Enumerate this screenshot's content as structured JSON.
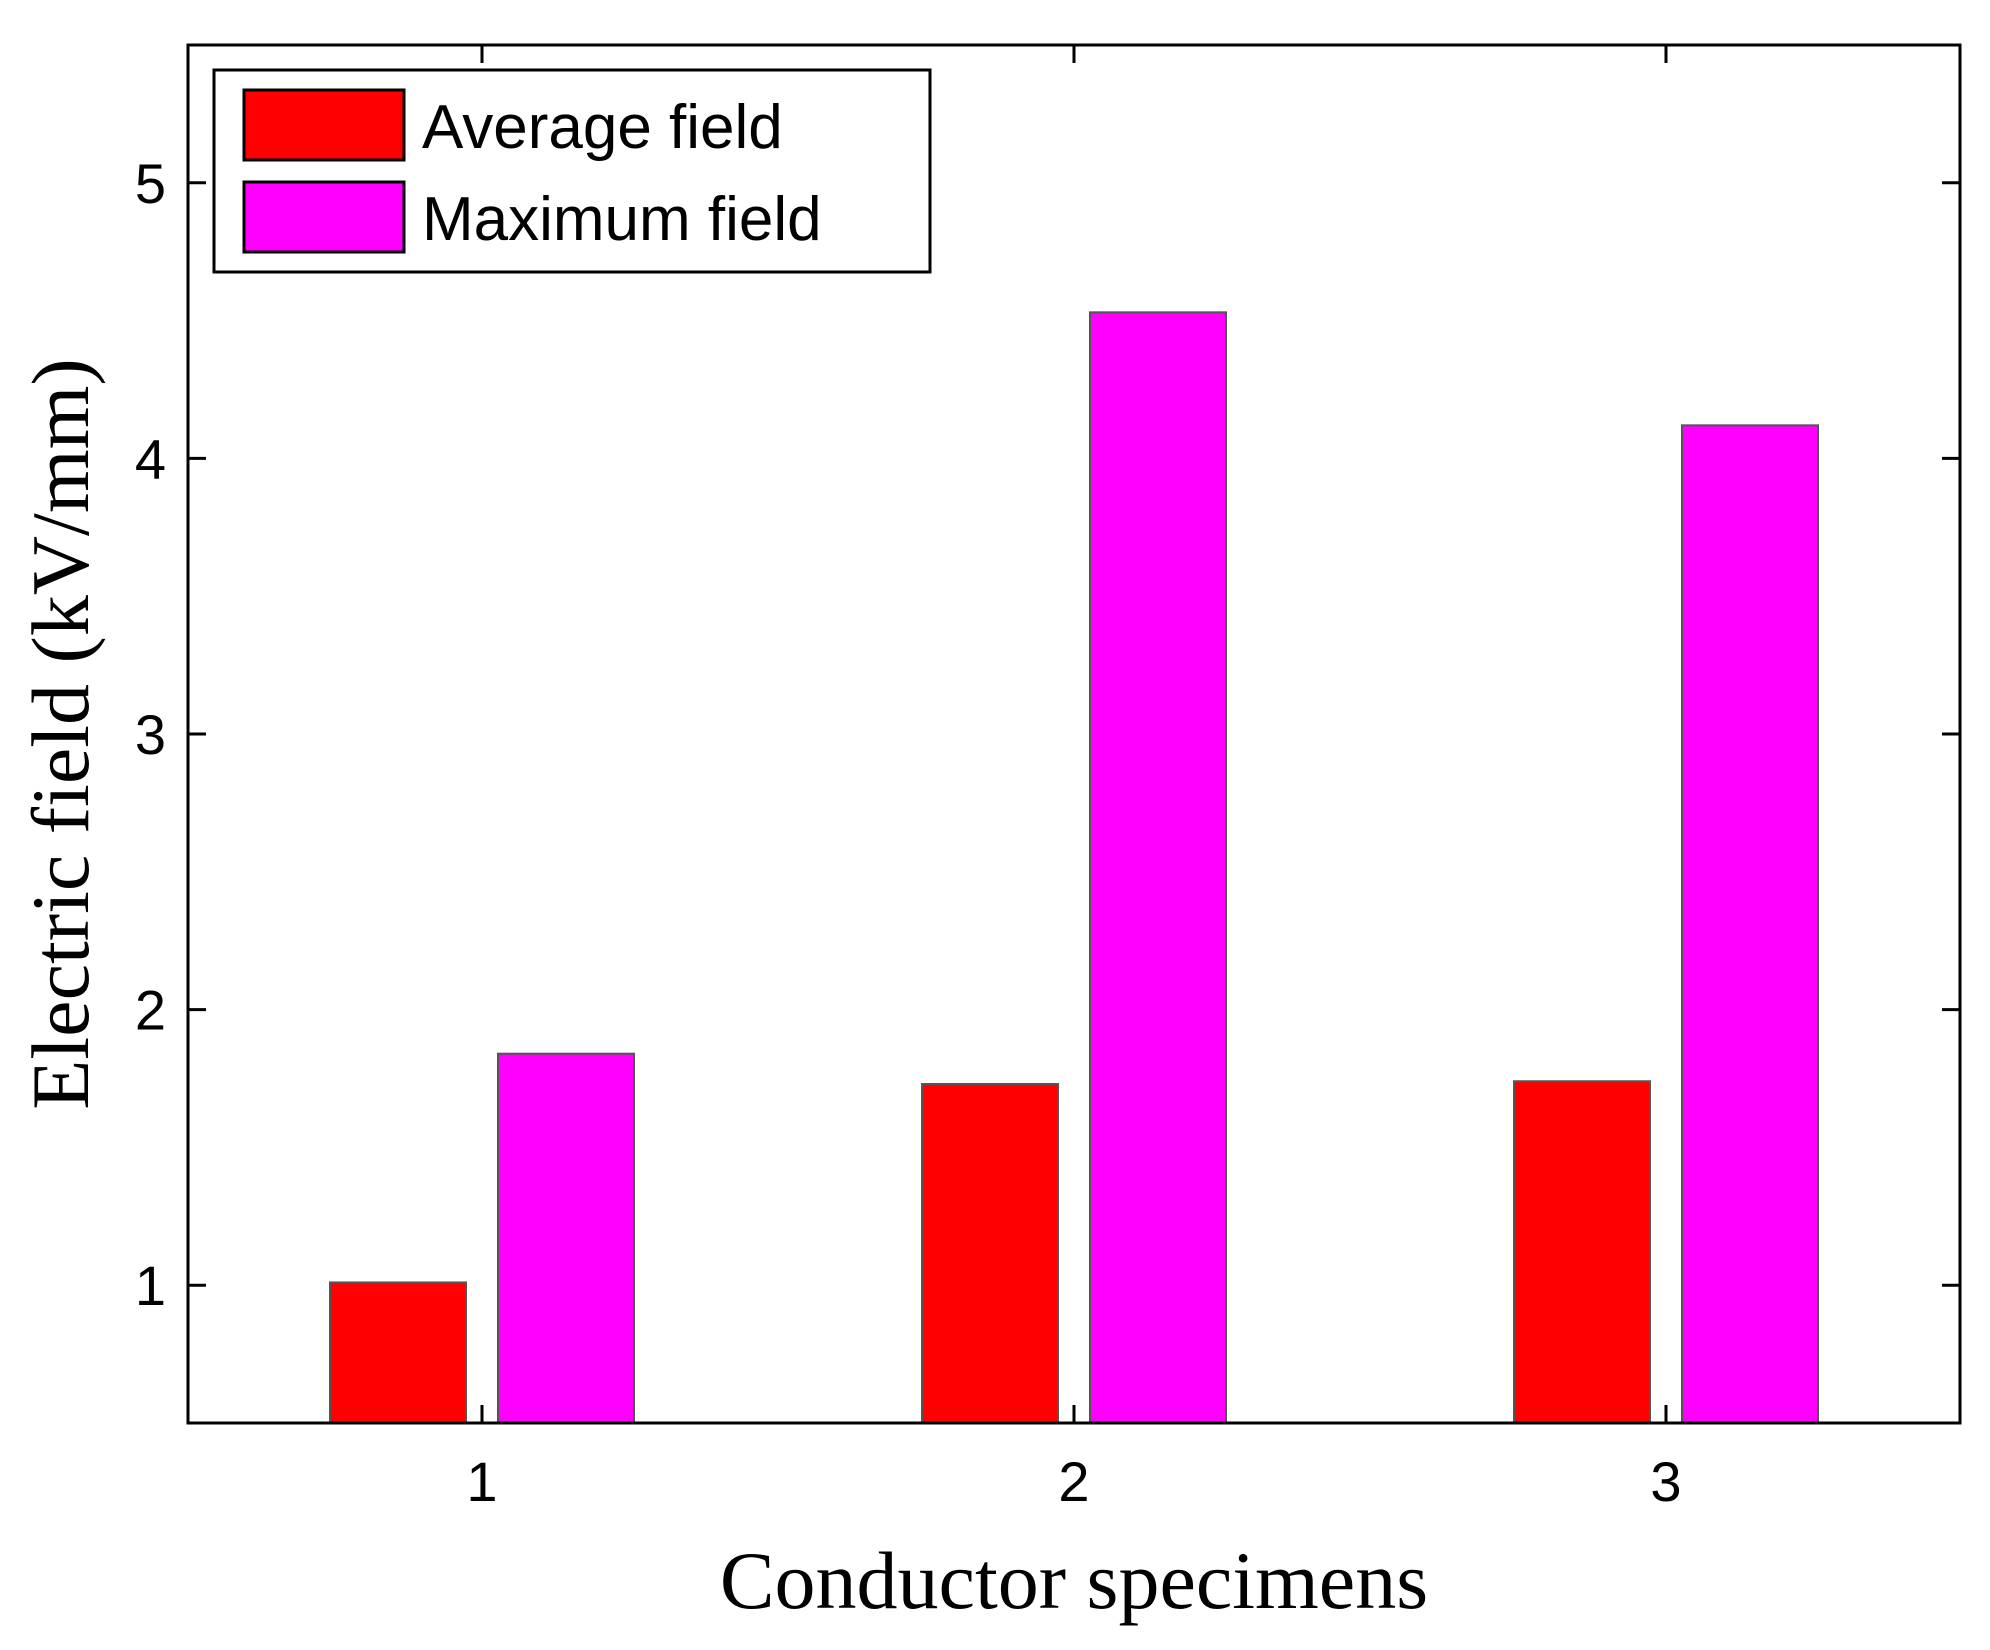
{
  "chart_data": {
    "type": "bar",
    "title": "",
    "xlabel": "Conductor specimens",
    "ylabel": "Electric field (kV/mm)",
    "categories": [
      "1",
      "2",
      "3"
    ],
    "series": [
      {
        "name": "Average field",
        "color": "#ff0000",
        "values": [
          1.01,
          1.73,
          1.74
        ]
      },
      {
        "name": "Maximum field",
        "color": "#ff00ff",
        "values": [
          1.84,
          4.53,
          4.12
        ]
      }
    ],
    "ylim": [
      0.5,
      5.5
    ],
    "yticks": [
      1,
      2,
      3,
      4,
      5
    ],
    "ytick_labels": [
      "1",
      "2",
      "3",
      "4",
      "5"
    ],
    "grid": false,
    "legend_position": "top-left"
  }
}
